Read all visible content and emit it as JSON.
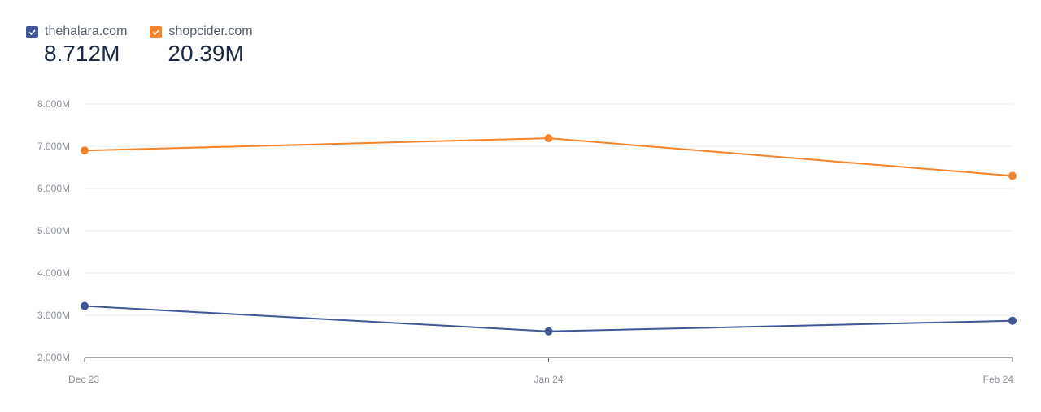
{
  "legend": [
    {
      "name": "thehalara.com",
      "total": "8.712M",
      "color": "#3f5796",
      "checked": true
    },
    {
      "name": "shopcider.com",
      "total": "20.39M",
      "color": "#f5832a",
      "checked": true
    }
  ],
  "chart_data": {
    "type": "line",
    "categories": [
      "Dec 23",
      "Jan 24",
      "Feb 24"
    ],
    "series": [
      {
        "name": "thehalara.com",
        "color": "#3f5796",
        "values": [
          3220000,
          2620000,
          2870000
        ]
      },
      {
        "name": "shopcider.com",
        "color": "#f5832a",
        "values": [
          6900000,
          7190000,
          6300000
        ]
      }
    ],
    "ylim": [
      2000000,
      8000000
    ],
    "yticks": [
      2000000,
      3000000,
      4000000,
      5000000,
      6000000,
      7000000,
      8000000
    ],
    "ytick_labels": [
      "2.000M",
      "3.000M",
      "4.000M",
      "5.000M",
      "6.000M",
      "7.000M",
      "8.000M"
    ],
    "grid": true,
    "legend_position": "top-left"
  }
}
